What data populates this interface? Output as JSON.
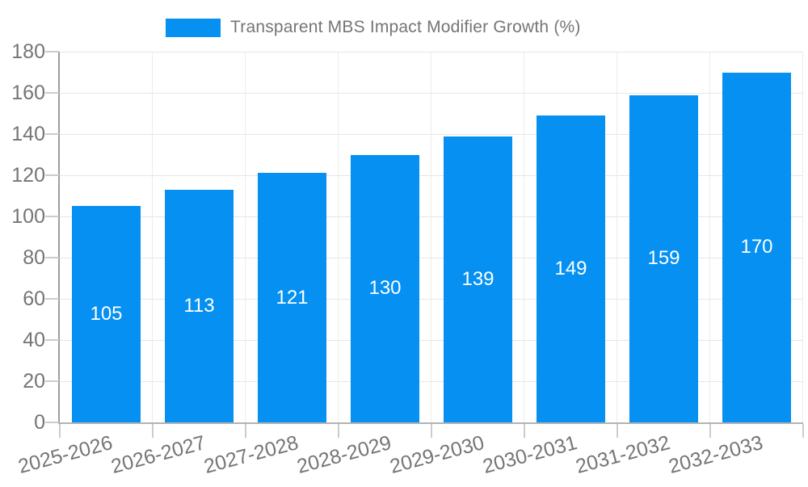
{
  "legend": {
    "label": "Transparent MBS Impact Modifier Growth (%)"
  },
  "colors": {
    "bar": "#0590f2",
    "bar_label": "#ffffff",
    "axis_text": "#757575"
  },
  "chart_data": {
    "type": "bar",
    "title": "Transparent MBS Impact Modifier Growth (%)",
    "categories": [
      "2025-2026",
      "2026-2027",
      "2027-2028",
      "2028-2029",
      "2029-2030",
      "2030-2031",
      "2031-2032",
      "2032-2033"
    ],
    "values": [
      105,
      113,
      121,
      130,
      139,
      149,
      159,
      170
    ],
    "bar_value_labels": [
      "105",
      "113",
      "121",
      "130",
      "139",
      "149",
      "159",
      "170"
    ],
    "xlabel": "",
    "ylabel": "",
    "ylim": [
      0,
      180
    ],
    "y_ticks": [
      0,
      20,
      40,
      60,
      80,
      100,
      120,
      140,
      160,
      180
    ],
    "grid": true,
    "legend_position": "top-center",
    "value_labels_inside_bars": true,
    "x_label_rotation_deg": -15
  }
}
